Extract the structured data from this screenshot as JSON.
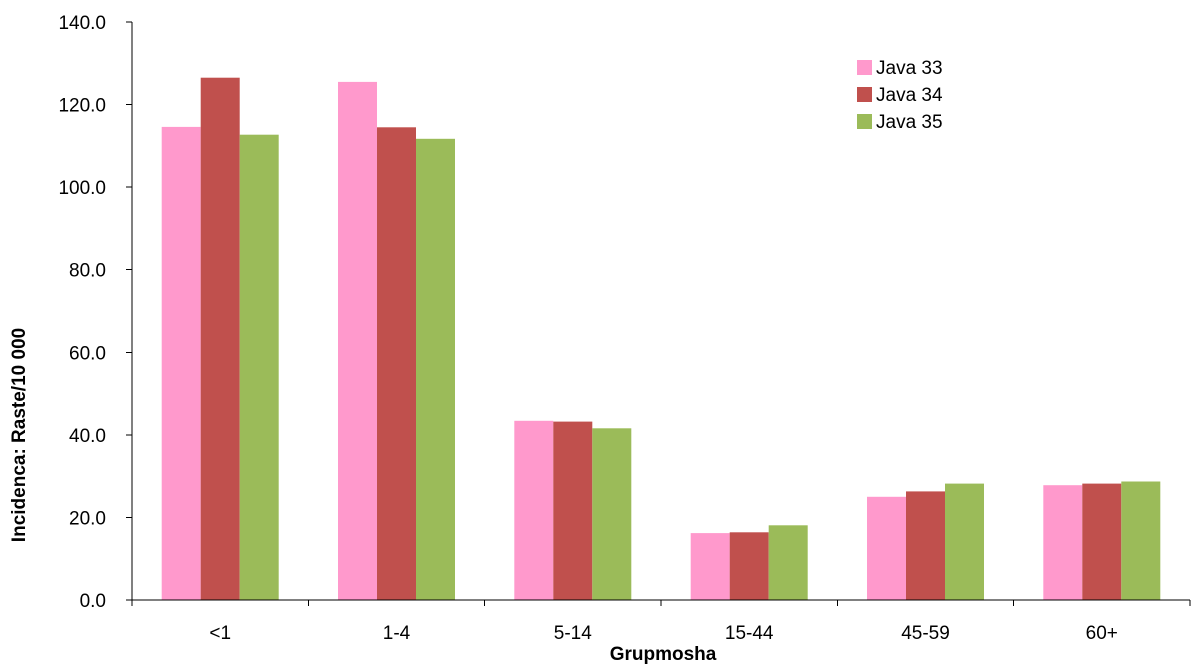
{
  "chart_data": {
    "type": "bar",
    "xlabel": "Grupmosha",
    "ylabel": "Incidenca: Raste/10 000",
    "ylim": [
      0,
      140
    ],
    "ytick_step": 20,
    "ytick_labels": [
      "0.0",
      "20.0",
      "40.0",
      "60.0",
      "80.0",
      "100.0",
      "120.0",
      "140.0"
    ],
    "categories": [
      "<1",
      "1-4",
      "5-14",
      "15-44",
      "45-59",
      "60+"
    ],
    "legend_position": "top-right",
    "grid": false,
    "series": [
      {
        "name": "Java 33",
        "color": "#FF99CC",
        "values": [
          114.6,
          125.5,
          43.4,
          16.2,
          25.0,
          27.8
        ]
      },
      {
        "name": "Java 34",
        "color": "#C0504D",
        "values": [
          126.5,
          114.5,
          43.2,
          16.4,
          26.3,
          28.2
        ]
      },
      {
        "name": "Java 35",
        "color": "#9BBB59",
        "values": [
          112.7,
          111.7,
          41.6,
          18.1,
          28.2,
          28.7
        ]
      }
    ]
  }
}
